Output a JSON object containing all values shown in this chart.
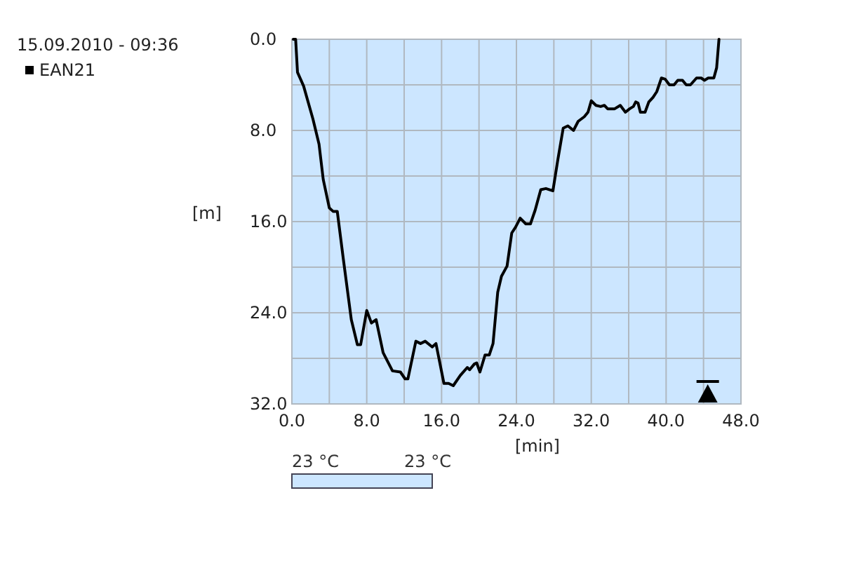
{
  "chart_data": {
    "type": "line",
    "title": "15.09.2010 - 09:36",
    "xlabel": "[min]",
    "ylabel": "[m]",
    "series": [
      {
        "name": "EAN21",
        "color": "#000000",
        "x": [
          0.15,
          0.4,
          0.6,
          1.25,
          2.25,
          2.9,
          3.35,
          4.0,
          4.4,
          4.85,
          5.5,
          6.35,
          7.0,
          7.35,
          8.0,
          8.5,
          9.0,
          9.75,
          10.75,
          11.6,
          12.1,
          12.4,
          13.25,
          13.75,
          14.25,
          15.0,
          15.4,
          16.25,
          16.75,
          17.25,
          18.0,
          18.75,
          19.0,
          19.5,
          19.75,
          20.1,
          20.65,
          21.1,
          21.5,
          22.0,
          22.4,
          23.0,
          23.5,
          23.9,
          24.4,
          25.0,
          25.5,
          26.0,
          26.6,
          27.15,
          27.9,
          28.4,
          29.0,
          29.5,
          30.1,
          30.6,
          31.25,
          31.65,
          32.0,
          32.5,
          33.0,
          33.4,
          33.75,
          34.5,
          35.1,
          35.65,
          36.1,
          36.5,
          36.75,
          37.0,
          37.25,
          37.75,
          38.15,
          38.6,
          39.0,
          39.5,
          39.9,
          40.35,
          40.85,
          41.25,
          41.75,
          42.15,
          42.6,
          43.25,
          43.75,
          44.1,
          44.5,
          45.1,
          45.4,
          45.65
        ],
        "values": [
          0,
          0,
          2.9,
          4.1,
          7.0,
          9.2,
          12.3,
          14.8,
          15.1,
          15.1,
          19.3,
          24.6,
          26.8,
          26.8,
          23.8,
          24.9,
          24.6,
          27.5,
          29.1,
          29.2,
          29.8,
          29.8,
          26.5,
          26.7,
          26.5,
          27.0,
          26.7,
          30.2,
          30.2,
          30.4,
          29.5,
          28.8,
          29.0,
          28.5,
          28.4,
          29.2,
          27.7,
          27.7,
          26.7,
          22.2,
          20.8,
          19.9,
          17.0,
          16.5,
          15.7,
          16.2,
          16.2,
          15.0,
          13.2,
          13.1,
          13.3,
          10.7,
          7.8,
          7.6,
          8.0,
          7.2,
          6.8,
          6.4,
          5.4,
          5.8,
          5.9,
          5.8,
          6.1,
          6.1,
          5.8,
          6.4,
          6.1,
          5.9,
          5.5,
          5.6,
          6.4,
          6.4,
          5.5,
          5.1,
          4.6,
          3.4,
          3.5,
          4.0,
          4.0,
          3.6,
          3.6,
          4.0,
          4.0,
          3.4,
          3.4,
          3.6,
          3.4,
          3.4,
          2.5,
          0
        ]
      }
    ],
    "xlim": [
      0,
      48
    ],
    "ylim": [
      32,
      0
    ],
    "xticks": [
      {
        "value": 0,
        "label": "0.0"
      },
      {
        "value": 4,
        "label": null
      },
      {
        "value": 8,
        "label": "8.0"
      },
      {
        "value": 12,
        "label": null
      },
      {
        "value": 16,
        "label": "16.0"
      },
      {
        "value": 20,
        "label": null
      },
      {
        "value": 24,
        "label": "24.0"
      },
      {
        "value": 28,
        "label": null
      },
      {
        "value": 32,
        "label": "32.0"
      },
      {
        "value": 36,
        "label": null
      },
      {
        "value": 40,
        "label": "40.0"
      },
      {
        "value": 44,
        "label": null
      },
      {
        "value": 48,
        "label": "48.0"
      }
    ],
    "yticks": [
      {
        "value": 0,
        "label": "0.0"
      },
      {
        "value": 4,
        "label": null
      },
      {
        "value": 8,
        "label": "8.0"
      },
      {
        "value": 12,
        "label": null
      },
      {
        "value": 16,
        "label": "16.0"
      },
      {
        "value": 20,
        "label": null
      },
      {
        "value": 24,
        "label": "24.0"
      },
      {
        "value": 28,
        "label": null
      },
      {
        "value": 32,
        "label": "32.0"
      }
    ],
    "grid": true,
    "legend": "top left",
    "marker": "none",
    "line_style": "solid",
    "annotations": [
      "23 °C",
      "23 °C"
    ]
  }
}
